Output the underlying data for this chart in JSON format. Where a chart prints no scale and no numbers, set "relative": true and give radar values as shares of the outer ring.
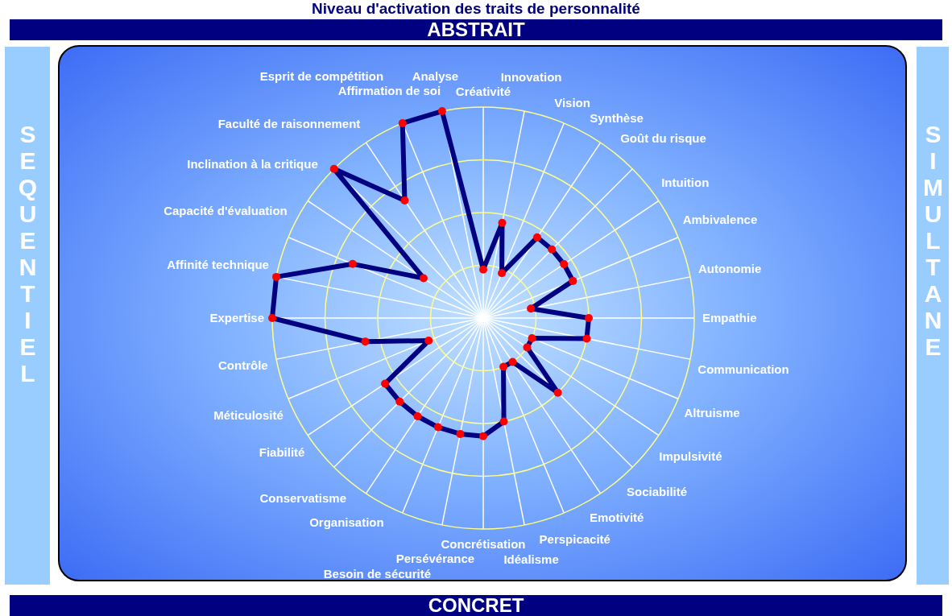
{
  "chart_data": {
    "type": "radar",
    "title": "Niveau d'activation des traits de personnalité",
    "annotations": [
      "ABSTRAIT",
      "CONCRET",
      "SEQUENTIEL",
      "SIMULTANE"
    ],
    "categories": [
      "Créativité",
      "Innovation",
      "Vision",
      "Synthèse",
      "Goût du risque",
      "Intuition",
      "Ambivalence",
      "Autonomie",
      "Empathie",
      "Communication",
      "Altruisme",
      "Impulsivité",
      "Sociabilité",
      "Emotivité",
      "Perspicacité",
      "Idéalisme",
      "Concrétisation",
      "Persévérance",
      "Besoin de sécurité",
      "Organisation",
      "Conservatisme",
      "Fiabilité",
      "Méticulosité",
      "Contrôle",
      "Expertise",
      "Affinité technique",
      "Capacité d'évaluation",
      "Inclination à la critique",
      "Faculté de raisonnement",
      "Esprit de compétition",
      "Affirmation de soi",
      "Analyse"
    ],
    "relative": true,
    "series": [
      {
        "color": "#000080",
        "values": [
          0.23,
          0.46,
          0.23,
          0.46,
          0.46,
          0.46,
          0.46,
          0.23,
          0.5,
          0.5,
          0.25,
          0.25,
          0.5,
          0.25,
          0.25,
          0.5,
          0.56,
          0.56,
          0.56,
          0.56,
          0.56,
          0.56,
          0.28,
          0.57,
          1,
          1,
          0.67,
          0.34,
          1,
          0.67,
          1,
          1
        ]
      }
    ],
    "marker": "circle",
    "grid": true,
    "legend": false
  }
}
